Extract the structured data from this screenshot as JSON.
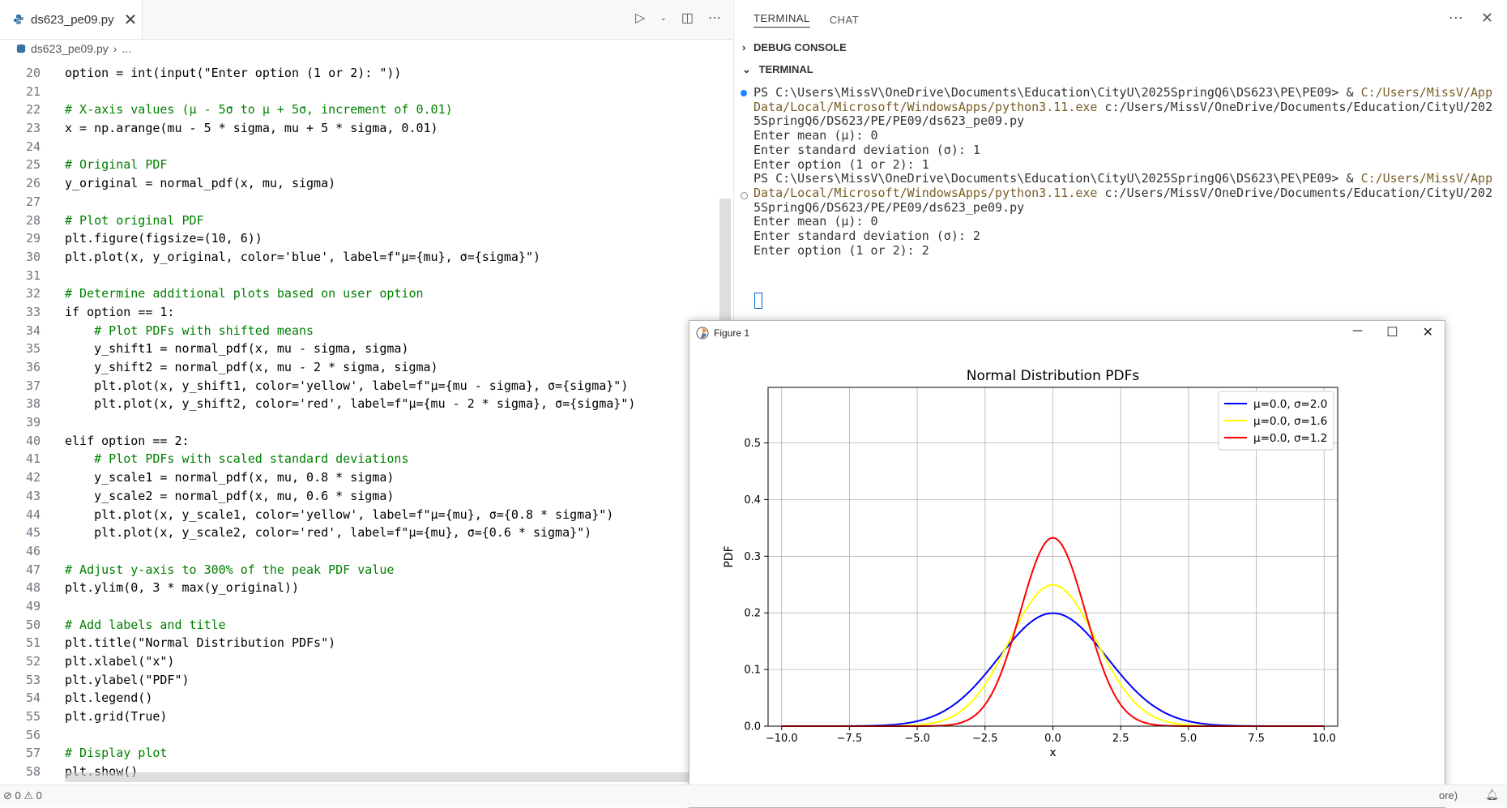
{
  "editor": {
    "tab_label": "ds623_pe09.py",
    "tab_close": "✕",
    "breadcrumb_file": "ds623_pe09.py",
    "breadcrumb_rest": "...",
    "lines": [
      {
        "n": "20",
        "t": "option = int(input(\"Enter option (1 or 2): \"))"
      },
      {
        "n": "21",
        "t": ""
      },
      {
        "n": "22",
        "t": "# X-axis values (μ - 5σ to μ + 5σ, increment of 0.01)"
      },
      {
        "n": "23",
        "t": "x = np.arange(mu - 5 * sigma, mu + 5 * sigma, 0.01)"
      },
      {
        "n": "24",
        "t": ""
      },
      {
        "n": "25",
        "t": "# Original PDF"
      },
      {
        "n": "26",
        "t": "y_original = normal_pdf(x, mu, sigma)"
      },
      {
        "n": "27",
        "t": ""
      },
      {
        "n": "28",
        "t": "# Plot original PDF"
      },
      {
        "n": "29",
        "t": "plt.figure(figsize=(10, 6))"
      },
      {
        "n": "30",
        "t": "plt.plot(x, y_original, color='blue', label=f\"μ={mu}, σ={sigma}\")"
      },
      {
        "n": "31",
        "t": ""
      },
      {
        "n": "32",
        "t": "# Determine additional plots based on user option"
      },
      {
        "n": "33",
        "t": "if option == 1:"
      },
      {
        "n": "34",
        "t": "    # Plot PDFs with shifted means"
      },
      {
        "n": "35",
        "t": "    y_shift1 = normal_pdf(x, mu - sigma, sigma)"
      },
      {
        "n": "36",
        "t": "    y_shift2 = normal_pdf(x, mu - 2 * sigma, sigma)"
      },
      {
        "n": "37",
        "t": "    plt.plot(x, y_shift1, color='yellow', label=f\"μ={mu - sigma}, σ={sigma}\")"
      },
      {
        "n": "38",
        "t": "    plt.plot(x, y_shift2, color='red', label=f\"μ={mu - 2 * sigma}, σ={sigma}\")"
      },
      {
        "n": "39",
        "t": ""
      },
      {
        "n": "40",
        "t": "elif option == 2:"
      },
      {
        "n": "41",
        "t": "    # Plot PDFs with scaled standard deviations"
      },
      {
        "n": "42",
        "t": "    y_scale1 = normal_pdf(x, mu, 0.8 * sigma)"
      },
      {
        "n": "43",
        "t": "    y_scale2 = normal_pdf(x, mu, 0.6 * sigma)"
      },
      {
        "n": "44",
        "t": "    plt.plot(x, y_scale1, color='yellow', label=f\"μ={mu}, σ={0.8 * sigma}\")"
      },
      {
        "n": "45",
        "t": "    plt.plot(x, y_scale2, color='red', label=f\"μ={mu}, σ={0.6 * sigma}\")"
      },
      {
        "n": "46",
        "t": ""
      },
      {
        "n": "47",
        "t": "# Adjust y-axis to 300% of the peak PDF value"
      },
      {
        "n": "48",
        "t": "plt.ylim(0, 3 * max(y_original))"
      },
      {
        "n": "49",
        "t": ""
      },
      {
        "n": "50",
        "t": "# Add labels and title"
      },
      {
        "n": "51",
        "t": "plt.title(\"Normal Distribution PDFs\")"
      },
      {
        "n": "52",
        "t": "plt.xlabel(\"x\")"
      },
      {
        "n": "53",
        "t": "plt.ylabel(\"PDF\")"
      },
      {
        "n": "54",
        "t": "plt.legend()"
      },
      {
        "n": "55",
        "t": "plt.grid(True)"
      },
      {
        "n": "56",
        "t": ""
      },
      {
        "n": "57",
        "t": "# Display plot"
      },
      {
        "n": "58",
        "t": "plt.show()"
      }
    ]
  },
  "panel": {
    "tab_terminal": "TERMINAL",
    "tab_chat": "CHAT",
    "debug_console": "DEBUG CONSOLE",
    "terminal_section": "TERMINAL",
    "terminal_lines": [
      {
        "plain": "PS C:\\Users\\MissV\\OneDrive\\Documents\\Education\\CityU\\2025SpringQ6\\DS623\\PE\\PE09> & ",
        "path": "C:/Users/MissV/App"
      },
      {
        "path": "Data/Local/Microsoft/WindowsApps/python3.11.exe",
        "plain": " c:/Users/MissV/OneDrive/Documents/Education/CityU/202"
      },
      {
        "plain": "5SpringQ6/DS623/PE/PE09/ds623_pe09.py"
      },
      {
        "plain": "Enter mean (μ): 0"
      },
      {
        "plain": "Enter standard deviation (σ): 1"
      },
      {
        "plain": "Enter option (1 or 2): 1"
      },
      {
        "plain": "PS C:\\Users\\MissV\\OneDrive\\Documents\\Education\\CityU\\2025SpringQ6\\DS623\\PE\\PE09> & ",
        "path": "C:/Users/MissV/App"
      },
      {
        "path": "Data/Local/Microsoft/WindowsApps/python3.11.exe",
        "plain": " c:/Users/MissV/OneDrive/Documents/Education/CityU/202"
      },
      {
        "plain": "5SpringQ6/DS623/PE/PE09/ds623_pe09.py"
      },
      {
        "plain": "Enter mean (μ): 0"
      },
      {
        "plain": "Enter standard deviation (σ): 2"
      },
      {
        "plain": "Enter option (1 or 2): 2"
      }
    ]
  },
  "figure": {
    "window_title": "Figure 1"
  },
  "chart_data": {
    "type": "line",
    "title": "Normal Distribution PDFs",
    "xlabel": "x",
    "ylabel": "PDF",
    "xlim": [
      -10.5,
      10.5
    ],
    "ylim": [
      0,
      0.598
    ],
    "xticks": [
      "−10.0",
      "−7.5",
      "−5.0",
      "−2.5",
      "0.0",
      "2.5",
      "5.0",
      "7.5",
      "10.0"
    ],
    "yticks": [
      "0.0",
      "0.1",
      "0.2",
      "0.3",
      "0.4",
      "0.5"
    ],
    "grid": true,
    "legend_position": "top-right",
    "series": [
      {
        "name": "μ=0.0, σ=2.0",
        "color": "#0000ff",
        "mu": 0.0,
        "sigma": 2.0
      },
      {
        "name": "μ=0.0, σ=1.6",
        "color": "#ffff00",
        "mu": 0.0,
        "sigma": 1.6
      },
      {
        "name": "μ=0.0, σ=1.2",
        "color": "#ff0000",
        "mu": 0.0,
        "sigma": 1.2
      }
    ]
  },
  "status": {
    "problems": "⊘ 0 ⚠ 0",
    "right_text": "ore)"
  }
}
